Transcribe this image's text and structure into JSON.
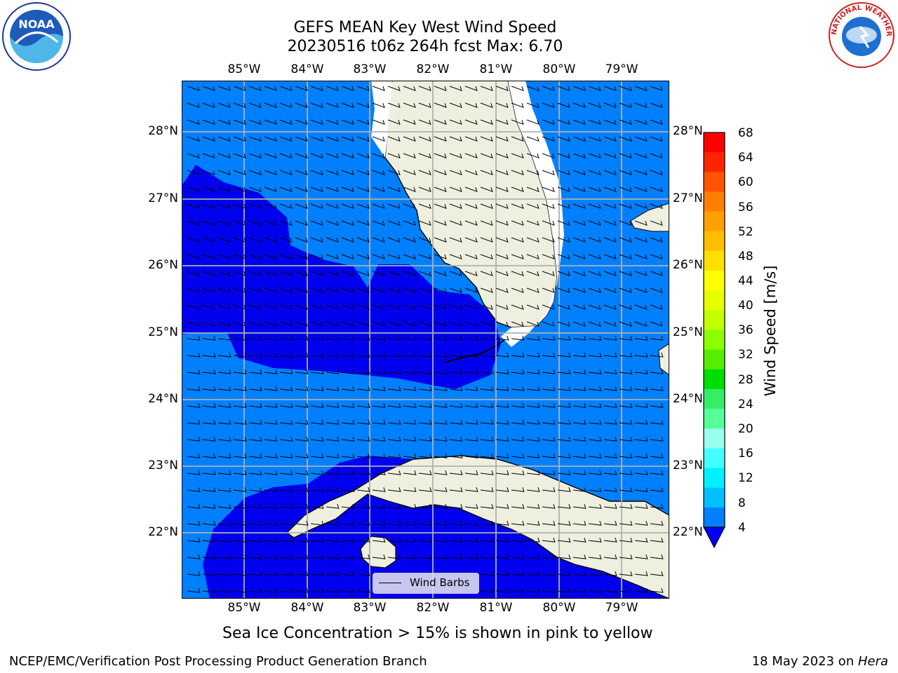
{
  "title_line1": "GEFS MEAN Key West Wind Speed",
  "title_line2": "20230516 t06z 264h fcst   Max: 6.70",
  "lon_ticks": [
    "85°W",
    "84°W",
    "83°W",
    "82°W",
    "81°W",
    "80°W",
    "79°W"
  ],
  "lat_ticks": [
    "28°N",
    "27°N",
    "26°N",
    "25°N",
    "24°N",
    "23°N",
    "22°N"
  ],
  "colorbar": {
    "label": "Wind Speed [m/s]",
    "ticks": [
      "68",
      "64",
      "60",
      "56",
      "52",
      "48",
      "44",
      "40",
      "36",
      "32",
      "28",
      "24",
      "20",
      "16",
      "12",
      "8",
      "4"
    ],
    "colors": [
      "#ff0000",
      "#ff2400",
      "#ff5500",
      "#ff7f00",
      "#ff9f00",
      "#ffbf00",
      "#ffdf00",
      "#ffff00",
      "#e6ff00",
      "#bfff00",
      "#8cff00",
      "#55ee00",
      "#00dd00",
      "#33ee66",
      "#55ff99",
      "#99ffee",
      "#44ffff",
      "#00f0ff",
      "#00c0ff",
      "#0080ff"
    ]
  },
  "legend_label": "Wind Barbs",
  "sea_ice_note": "Sea Ice Concentration > 15% is shown in pink to yellow",
  "footer_left": "NCEP/EMC/Verification Post Processing Product Generation Branch",
  "footer_right_date": "18 May 2023 on ",
  "footer_right_host": "Hera",
  "noaa_logo_text": "NOAA",
  "nws_logo_text": "NATIONAL WEATHER SERVICE",
  "colors": {
    "light_blue": "#0080ff",
    "dark_blue": "#0000ee",
    "land": "#efefdf"
  }
}
